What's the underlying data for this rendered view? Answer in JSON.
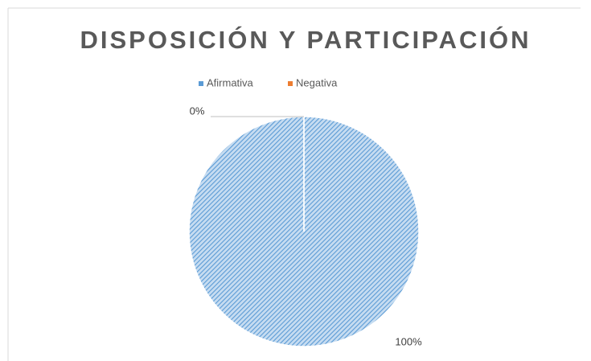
{
  "chart_data": {
    "type": "pie",
    "title": "DISPOSICIÓN Y PARTICIPACIÓN",
    "categories": [
      "Afirmativa",
      "Negativa"
    ],
    "values": [
      100,
      0
    ],
    "value_labels": [
      "100%",
      "0%"
    ],
    "colors": [
      "#5b9bd5",
      "#ed7d31"
    ],
    "legend": "top",
    "pattern": "diagonal-hatch"
  }
}
